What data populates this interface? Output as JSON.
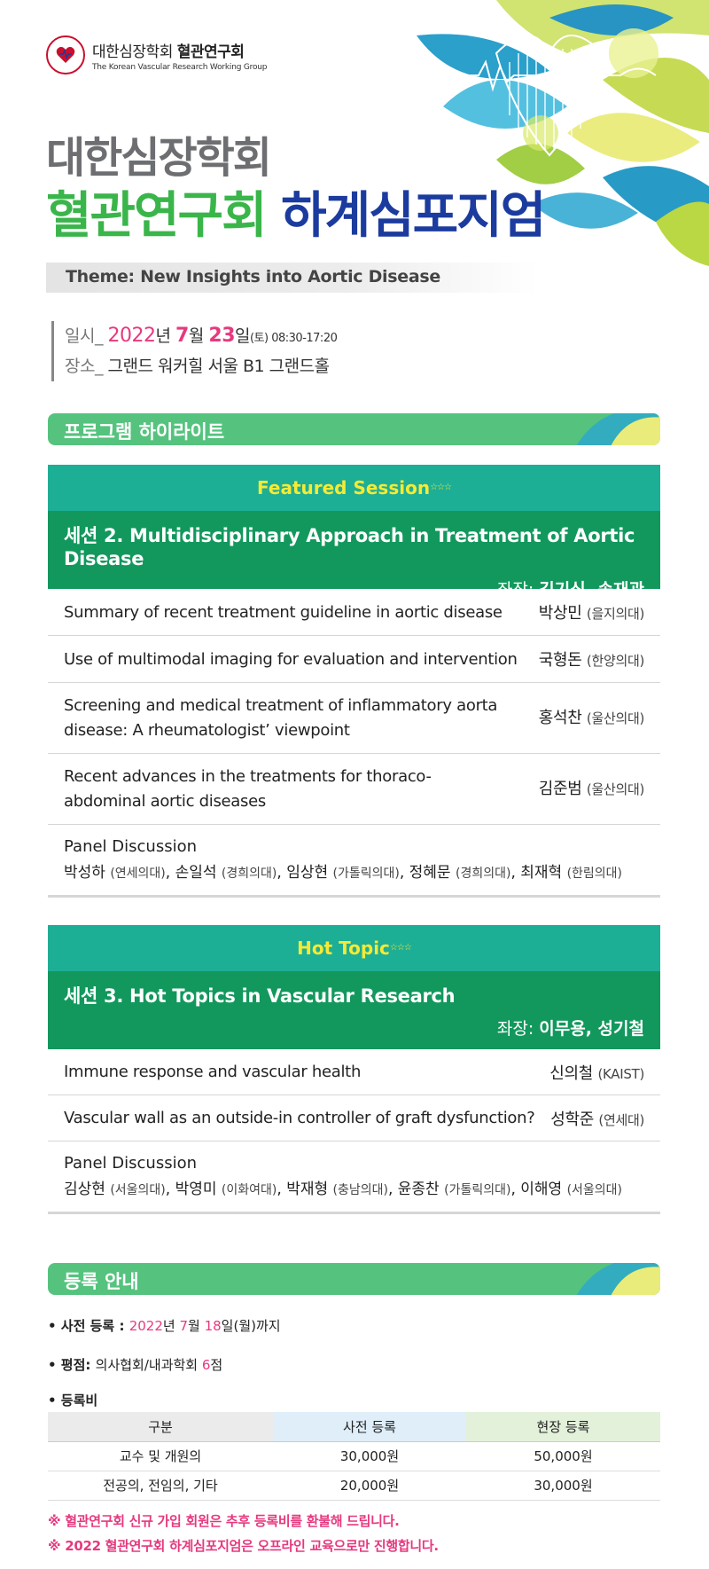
{
  "header": {
    "org_ko_light": "대한심장학회",
    "org_ko_bold": "혈관연구회",
    "org_en": "The Korean Vascular Research Working Group",
    "title_line1": "대한심장학회",
    "title_green": "혈관연구회",
    "title_blue": "하계심포지엄",
    "theme": "Theme: New Insights into Aortic Disease"
  },
  "event": {
    "date_label": "일시_",
    "year": "2022",
    "year_unit": "년",
    "month": "7",
    "month_unit": "월",
    "day": "23",
    "day_unit": "일",
    "day_time": "(토) 08:30-17:20",
    "place_label": "장소_",
    "place": "그랜드 워커힐 서울 B1 그랜드홀"
  },
  "highlight_title": "프로그램 하이라이트",
  "sessions": [
    {
      "badge": "Featured Session",
      "stars": "☆☆☆",
      "title": "세션 2. Multidisciplinary Approach in Treatment of Aortic Disease",
      "chair_label": "좌장: ",
      "chairs": "김기식, 송재관",
      "talks": [
        {
          "topic": "Summary of recent treatment guideline in aortic disease",
          "speaker": "박상민",
          "affil": "(을지의대)"
        },
        {
          "topic": "Use of multimodal imaging for evaluation and intervention",
          "speaker": "국형돈",
          "affil": "(한양의대)"
        },
        {
          "topic": "Screening and medical treatment of inflammatory aorta disease: A rheumatologist’ viewpoint",
          "speaker": "홍석찬",
          "affil": "(울산의대)"
        },
        {
          "topic": "Recent advances in the treatments for thoraco-abdominal aortic diseases",
          "speaker": "김준범",
          "affil": "(울산의대)"
        }
      ],
      "panel_title": "Panel Discussion",
      "panel_members": [
        {
          "name": "박성하",
          "affil": "(연세의대)"
        },
        {
          "name": "손일석",
          "affil": "(경희의대)"
        },
        {
          "name": "임상현",
          "affil": "(가톨릭의대)"
        },
        {
          "name": "정혜문",
          "affil": "(경희의대)"
        },
        {
          "name": "최재혁",
          "affil": "(한림의대)"
        }
      ]
    },
    {
      "badge": "Hot Topic",
      "stars": "☆☆☆",
      "title": "세션 3. Hot Topics in Vascular Research",
      "chair_label": "좌장: ",
      "chairs": "이무용, 성기철",
      "talks": [
        {
          "topic": "Immune response and vascular health",
          "speaker": "신의철",
          "affil": "(KAIST)"
        },
        {
          "topic": "Vascular wall as an outside-in controller of graft dysfunction?",
          "speaker": "성학준",
          "affil": "(연세대)"
        }
      ],
      "panel_title": "Panel Discussion",
      "panel_members": [
        {
          "name": "김상현",
          "affil": "(서울의대)"
        },
        {
          "name": "박영미",
          "affil": "(이화여대)"
        },
        {
          "name": "박재형",
          "affil": "(충남의대)"
        },
        {
          "name": "윤종찬",
          "affil": "(가톨릭의대)"
        },
        {
          "name": "이해영",
          "affil": "(서울의대)"
        }
      ]
    }
  ],
  "registration": {
    "title": "등록 안내",
    "pre_label": "• 사전 등록 : ",
    "pre_year": "2022",
    "pre_year_unit": "년 ",
    "pre_month": "7",
    "pre_month_unit": "월 ",
    "pre_day": "18",
    "pre_day_suffix": "일(월)까지",
    "credit_label": "• 평점: ",
    "credit_text": "의사협회/내과학회 ",
    "credit_num": "6",
    "credit_unit": "점",
    "fee_label": "• 등록비",
    "fee_headers": [
      "구분",
      "사전 등록",
      "현장 등록"
    ],
    "fee_rows": [
      [
        "교수 및 개원의",
        "30,000원",
        "50,000원"
      ],
      [
        "전공의, 전임의, 기타",
        "20,000원",
        "30,000원"
      ]
    ],
    "notes": [
      "※ 혈관연구회 신규 가입 회원은 추후 등록비를 환불해 드립니다.",
      "※ 2022 혈관연구회 하계심포지엄은 오프라인 교육으로만 진행합니다."
    ]
  },
  "colors": {
    "green_title": "#3ab54a",
    "blue_title": "#1b3b9e",
    "pink": "#e6397f",
    "teal": "#1dae96",
    "dark_green": "#12985d",
    "bar_green": "#55c37e"
  }
}
